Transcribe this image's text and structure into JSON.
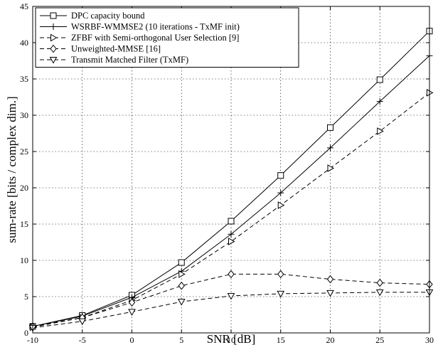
{
  "chart_data": {
    "type": "line",
    "xlabel": "SNR [dB]",
    "ylabel": "sum-rate [bits / complex dim.]",
    "xlim": [
      -10,
      30
    ],
    "ylim": [
      0,
      45
    ],
    "xticks": [
      -10,
      -5,
      0,
      5,
      10,
      15,
      20,
      25,
      30
    ],
    "yticks": [
      0,
      5,
      10,
      15,
      20,
      25,
      30,
      35,
      40,
      45
    ],
    "grid": true,
    "legend_position": "top-left",
    "x": [
      -10,
      -5,
      0,
      5,
      10,
      15,
      20,
      25,
      30
    ],
    "series": [
      {
        "name": "DPC capacity bound",
        "marker": "square",
        "linestyle": "solid",
        "values": [
          0.9,
          2.4,
          5.2,
          9.7,
          15.4,
          21.7,
          28.3,
          34.9,
          41.6
        ]
      },
      {
        "name": "WSRBF-WMMSE2 (10 iterations - TxMF init)",
        "marker": "plus",
        "linestyle": "solid",
        "values": [
          0.9,
          2.3,
          4.9,
          8.5,
          13.6,
          19.3,
          25.5,
          31.9,
          38.2
        ]
      },
      {
        "name": "ZFBF with Semi-orthogonal User Selection [9]",
        "marker": "triangle-right",
        "linestyle": "dashed",
        "values": [
          0.8,
          2.1,
          4.5,
          8.1,
          12.6,
          17.6,
          22.7,
          27.8,
          33.1
        ]
      },
      {
        "name": "Unweighted-MMSE [16]",
        "marker": "diamond",
        "linestyle": "dashed",
        "values": [
          0.9,
          2.1,
          4.2,
          6.5,
          8.1,
          8.1,
          7.4,
          6.9,
          6.7
        ]
      },
      {
        "name": "Transmit Matched Filter (TxMF)",
        "marker": "triangle-down",
        "linestyle": "dashed",
        "values": [
          0.7,
          1.6,
          2.9,
          4.3,
          5.1,
          5.4,
          5.5,
          5.6,
          5.6
        ]
      }
    ]
  }
}
